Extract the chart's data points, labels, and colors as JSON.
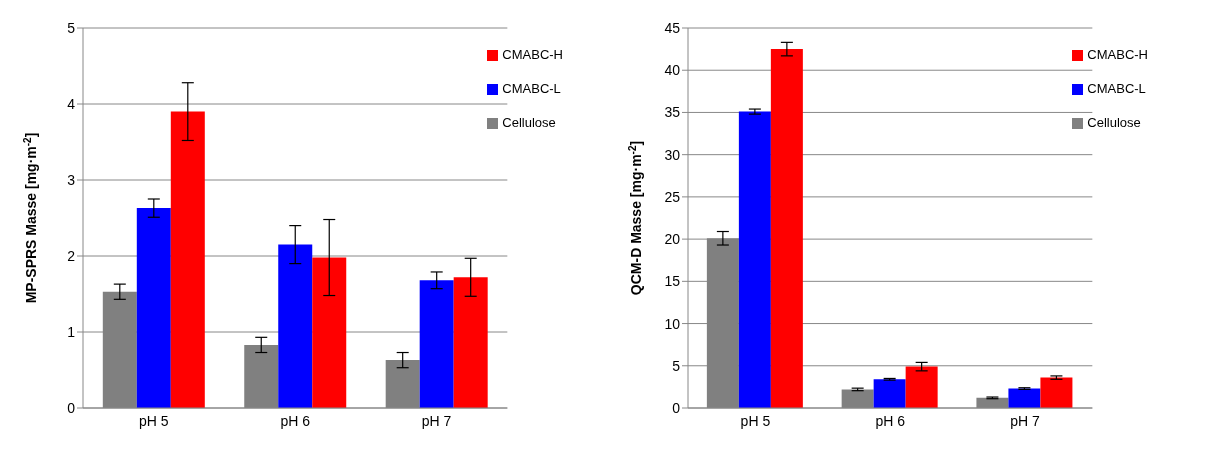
{
  "chart_data": [
    {
      "type": "bar",
      "ylabel": "MP-SPRS Masse [mg·m$^{-2}$]",
      "categories": [
        "pH 5",
        "pH 6",
        "pH 7"
      ],
      "series": [
        {
          "name": "Cellulose",
          "color": "#808080",
          "values": [
            1.53,
            0.83,
            0.63
          ],
          "errors": [
            0.1,
            0.1,
            0.1
          ]
        },
        {
          "name": "CMABC-L",
          "color": "#0000ff",
          "values": [
            2.63,
            2.15,
            1.68
          ],
          "errors": [
            0.12,
            0.25,
            0.11
          ]
        },
        {
          "name": "CMABC-H",
          "color": "#ff0000",
          "values": [
            3.9,
            1.98,
            1.72
          ],
          "errors": [
            0.38,
            0.5,
            0.25
          ]
        }
      ],
      "ylim": [
        0,
        5
      ],
      "yticks": [
        0,
        1,
        2,
        3,
        4,
        5
      ],
      "grid": "y",
      "legend": "top right"
    },
    {
      "type": "bar",
      "ylabel": "QCM-D Masse [mg·m$^{-2}$]",
      "categories": [
        "pH 5",
        "pH 6",
        "pH 7"
      ],
      "series": [
        {
          "name": "Cellulose",
          "color": "#808080",
          "values": [
            20.1,
            2.2,
            1.2
          ],
          "errors": [
            0.8,
            0.15,
            0.1
          ]
        },
        {
          "name": "CMABC-L",
          "color": "#0000ff",
          "values": [
            35.1,
            3.4,
            2.3
          ],
          "errors": [
            0.3,
            0.1,
            0.1
          ]
        },
        {
          "name": "CMABC-H",
          "color": "#ff0000",
          "values": [
            42.5,
            4.9,
            3.6
          ],
          "errors": [
            0.8,
            0.5,
            0.2
          ]
        }
      ],
      "ylim": [
        0,
        45
      ],
      "yticks": [
        0,
        5,
        10,
        15,
        20,
        25,
        30,
        35,
        40,
        45
      ],
      "grid": "y",
      "legend": "top right"
    }
  ]
}
